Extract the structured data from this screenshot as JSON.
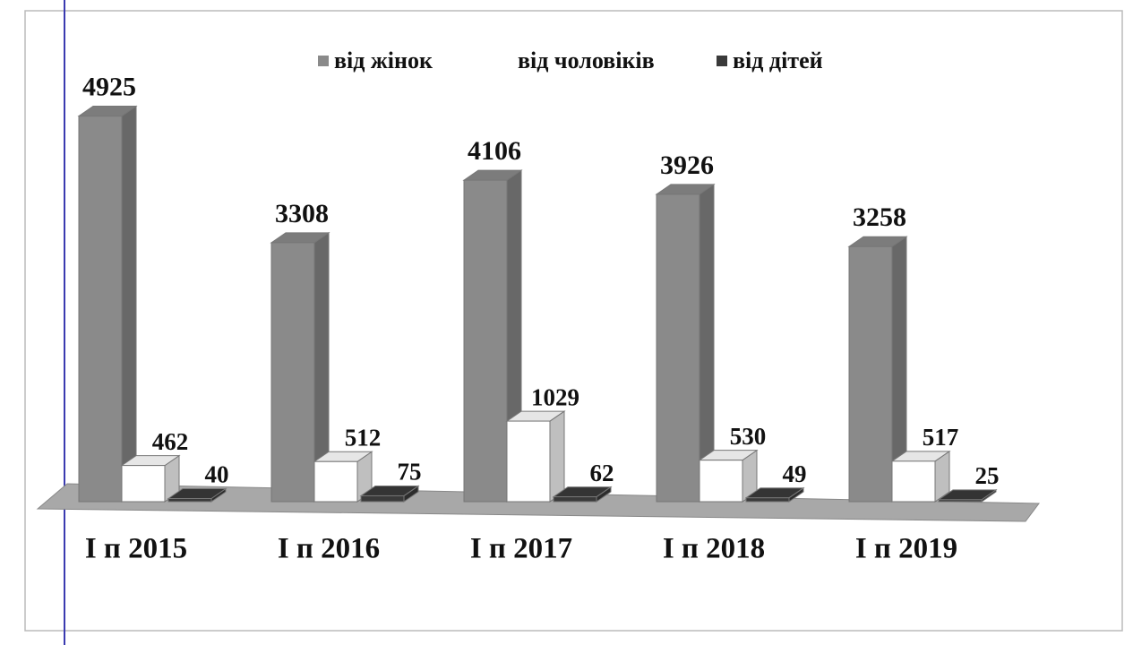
{
  "chart_data": {
    "type": "bar3d",
    "categories": [
      "І п 2015",
      "І п 2016",
      "І п 2017",
      "І п 2018",
      "І п 2019"
    ],
    "series": [
      {
        "name": "від жінок",
        "color": "#8a8a8a",
        "values": [
          4925,
          3308,
          4106,
          3926,
          3258
        ]
      },
      {
        "name": "від чоловіків",
        "color": "#ffffff",
        "values": [
          462,
          512,
          1029,
          530,
          517
        ]
      },
      {
        "name": "від дітей",
        "color": "#3a3a3a",
        "values": [
          40,
          75,
          62,
          49,
          25
        ]
      }
    ],
    "ylim": [
      0,
      5000
    ],
    "legend": "top"
  }
}
